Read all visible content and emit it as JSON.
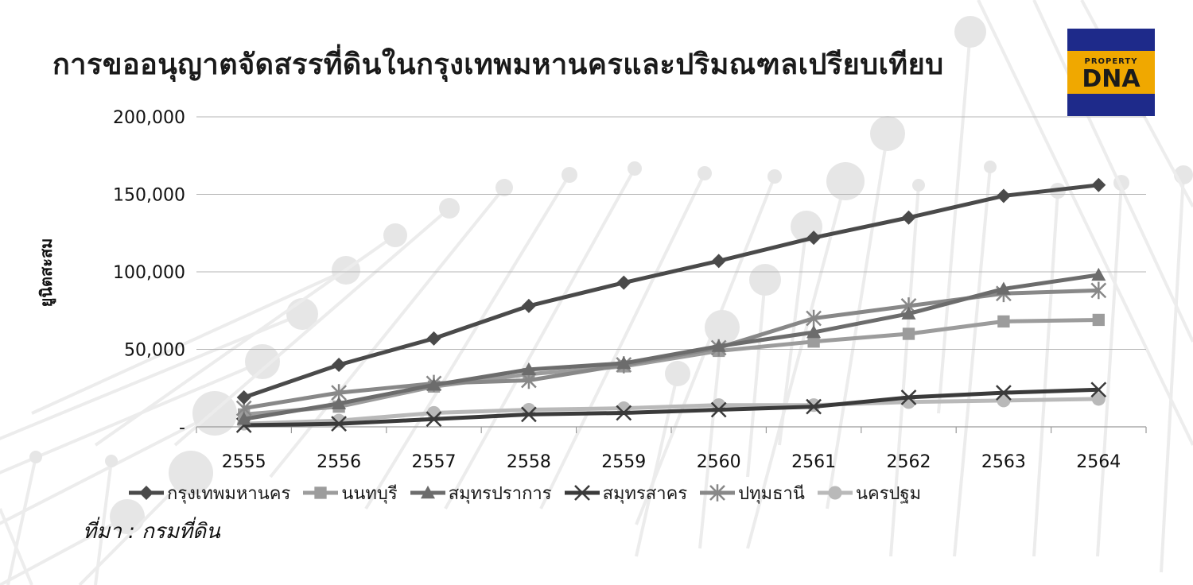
{
  "title": "การขออนุญาตจัดสรรที่ดินในกรุงเทพมหานครและปริมณฑลเปรียบเทียบ",
  "logo": {
    "line1": "PROPERTY",
    "line2": "DNA",
    "colors": {
      "bg": "#f0a800",
      "strip": "#1e2a8a"
    }
  },
  "source": "ที่มา : กรมที่ดิน",
  "chart_data": {
    "type": "line",
    "title": "การขออนุญาตจัดสรรที่ดินในกรุงเทพมหานครและปริมณฑลเปรียบเทียบ",
    "xlabel": "",
    "ylabel": "ยูนิตสะสม",
    "categories": [
      "2555",
      "2556",
      "2557",
      "2558",
      "2559",
      "2560",
      "2561",
      "2562",
      "2563",
      "2564"
    ],
    "ylim": [
      0,
      200000
    ],
    "yticks": [
      0,
      50000,
      100000,
      150000,
      200000
    ],
    "ytick_labels": [
      "-",
      "50,000",
      "100,000",
      "150,000",
      "200,000"
    ],
    "grid": true,
    "legend_position": "bottom",
    "series": [
      {
        "name": "กรุงเทพมหานคร",
        "marker": "diamond",
        "color": "#4a4a4a",
        "values": [
          19000,
          40000,
          57000,
          78000,
          93000,
          107000,
          122000,
          135000,
          149000,
          156000
        ]
      },
      {
        "name": "นนทบุรี",
        "marker": "square",
        "color": "#9c9c9c",
        "values": [
          8000,
          13000,
          26000,
          34000,
          39000,
          49000,
          55000,
          60000,
          68000,
          69000
        ]
      },
      {
        "name": "สมุทรปราการ",
        "marker": "triangle",
        "color": "#6c6c6c",
        "values": [
          5000,
          15000,
          27000,
          37000,
          41000,
          52000,
          61000,
          73000,
          89000,
          98000
        ]
      },
      {
        "name": "สมุทรสาคร",
        "marker": "x",
        "color": "#3a3a3a",
        "values": [
          1000,
          2000,
          5000,
          8000,
          9000,
          11000,
          13000,
          19000,
          22000,
          24000
        ]
      },
      {
        "name": "ปทุมธานี",
        "marker": "star",
        "color": "#888888",
        "values": [
          12000,
          22000,
          28000,
          30000,
          40000,
          51000,
          70000,
          78000,
          86000,
          88000
        ]
      },
      {
        "name": "นครปฐม",
        "marker": "circle",
        "color": "#b9b9b9",
        "values": [
          2000,
          4000,
          9000,
          11000,
          12000,
          14000,
          14000,
          16000,
          17000,
          18000
        ]
      }
    ]
  }
}
